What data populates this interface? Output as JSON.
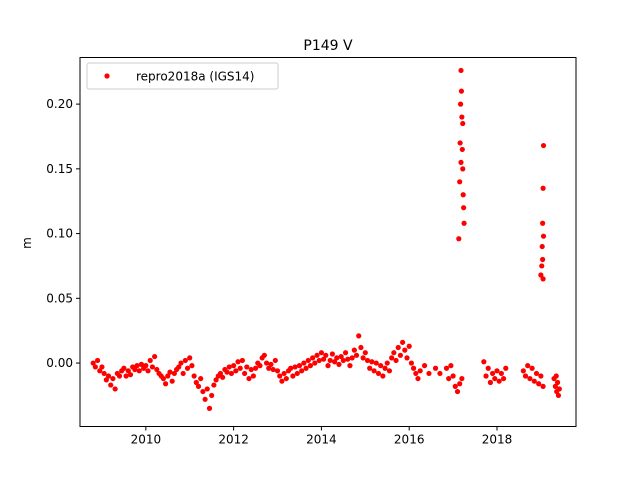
{
  "chart_data": {
    "type": "scatter",
    "title": "P149 V",
    "xlabel": "",
    "ylabel": "m",
    "xlim": [
      2008.5,
      2019.8
    ],
    "ylim": [
      -0.049,
      0.236
    ],
    "x_ticks": [
      2010,
      2012,
      2014,
      2016,
      2018
    ],
    "x_tick_labels": [
      "2010",
      "2012",
      "2014",
      "2016",
      "2018"
    ],
    "y_ticks": [
      0.0,
      0.05,
      0.1,
      0.15,
      0.2
    ],
    "y_tick_labels": [
      "0.00",
      "0.05",
      "0.10",
      "0.15",
      "0.20"
    ],
    "legend": {
      "placement": "upper-left",
      "entries": [
        {
          "label": "repro2018a (IGS14)",
          "color": "#ff0000"
        }
      ]
    },
    "grid": false,
    "series": [
      {
        "name": "repro2018a (IGS14)",
        "color": "#ff0000",
        "marker": "circle",
        "points": [
          [
            2008.8,
            0.0
          ],
          [
            2008.85,
            -0.003
          ],
          [
            2008.9,
            0.002
          ],
          [
            2008.95,
            -0.006
          ],
          [
            2009.0,
            -0.003
          ],
          [
            2009.05,
            -0.008
          ],
          [
            2009.1,
            -0.013
          ],
          [
            2009.15,
            -0.01
          ],
          [
            2009.2,
            -0.017
          ],
          [
            2009.25,
            -0.012
          ],
          [
            2009.3,
            -0.02
          ],
          [
            2009.35,
            -0.008
          ],
          [
            2009.4,
            -0.01
          ],
          [
            2009.45,
            -0.006
          ],
          [
            2009.5,
            -0.004
          ],
          [
            2009.55,
            -0.01
          ],
          [
            2009.6,
            -0.006
          ],
          [
            2009.65,
            -0.009
          ],
          [
            2009.7,
            -0.003
          ],
          [
            2009.75,
            -0.005
          ],
          [
            2009.8,
            -0.002
          ],
          [
            2009.85,
            -0.006
          ],
          [
            2009.9,
            -0.001
          ],
          [
            2009.95,
            -0.004
          ],
          [
            2010.0,
            -0.002
          ],
          [
            2010.05,
            -0.006
          ],
          [
            2010.1,
            0.002
          ],
          [
            2010.15,
            -0.003
          ],
          [
            2010.2,
            0.005
          ],
          [
            2010.25,
            -0.005
          ],
          [
            2010.3,
            -0.008
          ],
          [
            2010.35,
            -0.01
          ],
          [
            2010.4,
            -0.012
          ],
          [
            2010.45,
            -0.016
          ],
          [
            2010.5,
            -0.01
          ],
          [
            2010.55,
            -0.007
          ],
          [
            2010.6,
            -0.014
          ],
          [
            2010.65,
            -0.008
          ],
          [
            2010.7,
            -0.005
          ],
          [
            2010.75,
            -0.003
          ],
          [
            2010.8,
            0.0
          ],
          [
            2010.85,
            -0.008
          ],
          [
            2010.9,
            0.002
          ],
          [
            2010.95,
            -0.004
          ],
          [
            2011.0,
            0.004
          ],
          [
            2011.05,
            -0.002
          ],
          [
            2011.1,
            -0.01
          ],
          [
            2011.15,
            -0.015
          ],
          [
            2011.2,
            -0.018
          ],
          [
            2011.25,
            -0.012
          ],
          [
            2011.3,
            -0.022
          ],
          [
            2011.35,
            -0.028
          ],
          [
            2011.4,
            -0.02
          ],
          [
            2011.45,
            -0.035
          ],
          [
            2011.5,
            -0.025
          ],
          [
            2011.55,
            -0.017
          ],
          [
            2011.6,
            -0.013
          ],
          [
            2011.65,
            -0.01
          ],
          [
            2011.7,
            -0.008
          ],
          [
            2011.75,
            -0.011
          ],
          [
            2011.8,
            -0.005
          ],
          [
            2011.85,
            -0.007
          ],
          [
            2011.9,
            -0.003
          ],
          [
            2011.95,
            -0.008
          ],
          [
            2012.0,
            -0.002
          ],
          [
            2012.05,
            -0.006
          ],
          [
            2012.1,
            0.001
          ],
          [
            2012.15,
            -0.004
          ],
          [
            2012.2,
            0.002
          ],
          [
            2012.25,
            -0.008
          ],
          [
            2012.3,
            -0.003
          ],
          [
            2012.35,
            -0.012
          ],
          [
            2012.4,
            -0.005
          ],
          [
            2012.45,
            -0.01
          ],
          [
            2012.5,
            -0.004
          ],
          [
            2012.55,
            0.0
          ],
          [
            2012.6,
            -0.002
          ],
          [
            2012.65,
            0.004
          ],
          [
            2012.7,
            0.006
          ],
          [
            2012.75,
            0.0
          ],
          [
            2012.8,
            -0.004
          ],
          [
            2012.85,
            -0.001
          ],
          [
            2012.9,
            -0.005
          ],
          [
            2012.95,
            0.002
          ],
          [
            2013.0,
            -0.006
          ],
          [
            2013.05,
            -0.01
          ],
          [
            2013.1,
            -0.014
          ],
          [
            2013.15,
            -0.008
          ],
          [
            2013.2,
            -0.012
          ],
          [
            2013.25,
            -0.006
          ],
          [
            2013.3,
            -0.004
          ],
          [
            2013.35,
            -0.01
          ],
          [
            2013.4,
            -0.003
          ],
          [
            2013.45,
            -0.008
          ],
          [
            2013.5,
            -0.002
          ],
          [
            2013.55,
            -0.006
          ],
          [
            2013.6,
            0.0
          ],
          [
            2013.65,
            -0.004
          ],
          [
            2013.7,
            0.002
          ],
          [
            2013.75,
            -0.002
          ],
          [
            2013.8,
            0.004
          ],
          [
            2013.85,
            0.0
          ],
          [
            2013.9,
            0.006
          ],
          [
            2013.95,
            0.002
          ],
          [
            2014.0,
            0.008
          ],
          [
            2014.05,
            0.003
          ],
          [
            2014.1,
            0.006
          ],
          [
            2014.15,
            -0.002
          ],
          [
            2014.2,
            0.002
          ],
          [
            2014.25,
            0.007
          ],
          [
            2014.3,
            0.001
          ],
          [
            2014.35,
            0.004
          ],
          [
            2014.4,
            -0.001
          ],
          [
            2014.45,
            0.005
          ],
          [
            2014.5,
            0.002
          ],
          [
            2014.55,
            0.008
          ],
          [
            2014.6,
            0.003
          ],
          [
            2014.65,
            -0.002
          ],
          [
            2014.7,
            0.004
          ],
          [
            2014.75,
            0.01
          ],
          [
            2014.8,
            0.006
          ],
          [
            2014.85,
            0.021
          ],
          [
            2014.9,
            0.012
          ],
          [
            2014.95,
            0.004
          ],
          [
            2015.0,
            0.008
          ],
          [
            2015.05,
            0.002
          ],
          [
            2015.1,
            -0.004
          ],
          [
            2015.15,
            0.001
          ],
          [
            2015.2,
            -0.006
          ],
          [
            2015.25,
            0.0
          ],
          [
            2015.3,
            -0.008
          ],
          [
            2015.35,
            -0.002
          ],
          [
            2015.4,
            -0.01
          ],
          [
            2015.45,
            -0.004
          ],
          [
            2015.5,
            0.0
          ],
          [
            2015.55,
            -0.006
          ],
          [
            2015.6,
            0.004
          ],
          [
            2015.65,
            0.008
          ],
          [
            2015.7,
            0.002
          ],
          [
            2015.75,
            0.012
          ],
          [
            2015.8,
            0.006
          ],
          [
            2015.85,
            0.016
          ],
          [
            2015.9,
            0.01
          ],
          [
            2015.95,
            0.004
          ],
          [
            2016.0,
            0.013
          ],
          [
            2016.05,
            0.0
          ],
          [
            2016.1,
            -0.004
          ],
          [
            2016.15,
            -0.008
          ],
          [
            2016.2,
            -0.012
          ],
          [
            2016.25,
            -0.006
          ],
          [
            2016.35,
            -0.002
          ],
          [
            2016.45,
            -0.008
          ],
          [
            2016.6,
            -0.004
          ],
          [
            2016.7,
            -0.008
          ],
          [
            2016.85,
            -0.004
          ],
          [
            2016.9,
            -0.012
          ],
          [
            2016.95,
            -0.002
          ],
          [
            2017.0,
            -0.01
          ],
          [
            2017.05,
            -0.018
          ],
          [
            2017.1,
            -0.022
          ],
          [
            2017.15,
            -0.016
          ],
          [
            2017.2,
            -0.012
          ],
          [
            2017.13,
            0.096
          ],
          [
            2017.15,
            0.14
          ],
          [
            2017.16,
            0.17
          ],
          [
            2017.17,
            0.2
          ],
          [
            2017.18,
            0.226
          ],
          [
            2017.19,
            0.21
          ],
          [
            2017.2,
            0.19
          ],
          [
            2017.21,
            0.165
          ],
          [
            2017.22,
            0.15
          ],
          [
            2017.23,
            0.13
          ],
          [
            2017.24,
            0.12
          ],
          [
            2017.25,
            0.108
          ],
          [
            2017.22,
            0.185
          ],
          [
            2017.18,
            0.155
          ],
          [
            2017.7,
            0.001
          ],
          [
            2017.75,
            -0.01
          ],
          [
            2017.8,
            -0.004
          ],
          [
            2017.85,
            -0.015
          ],
          [
            2017.9,
            -0.008
          ],
          [
            2017.95,
            -0.012
          ],
          [
            2018.0,
            -0.006
          ],
          [
            2018.05,
            -0.014
          ],
          [
            2018.1,
            -0.008
          ],
          [
            2018.15,
            -0.012
          ],
          [
            2018.2,
            -0.004
          ],
          [
            2018.6,
            -0.006
          ],
          [
            2018.65,
            -0.01
          ],
          [
            2018.7,
            -0.002
          ],
          [
            2018.75,
            -0.012
          ],
          [
            2018.8,
            -0.004
          ],
          [
            2018.85,
            -0.014
          ],
          [
            2018.9,
            -0.008
          ],
          [
            2018.95,
            -0.016
          ],
          [
            2019.0,
            -0.01
          ],
          [
            2019.05,
            -0.018
          ],
          [
            2019.0,
            0.068
          ],
          [
            2019.02,
            0.075
          ],
          [
            2019.03,
            0.09
          ],
          [
            2019.04,
            0.108
          ],
          [
            2019.05,
            0.135
          ],
          [
            2019.06,
            0.168
          ],
          [
            2019.05,
            0.065
          ],
          [
            2019.04,
            0.08
          ],
          [
            2019.06,
            0.098
          ],
          [
            2019.3,
            -0.012
          ],
          [
            2019.33,
            -0.018
          ],
          [
            2019.36,
            -0.022
          ],
          [
            2019.38,
            -0.015
          ],
          [
            2019.4,
            -0.025
          ],
          [
            2019.42,
            -0.02
          ],
          [
            2019.35,
            -0.01
          ]
        ]
      }
    ]
  }
}
